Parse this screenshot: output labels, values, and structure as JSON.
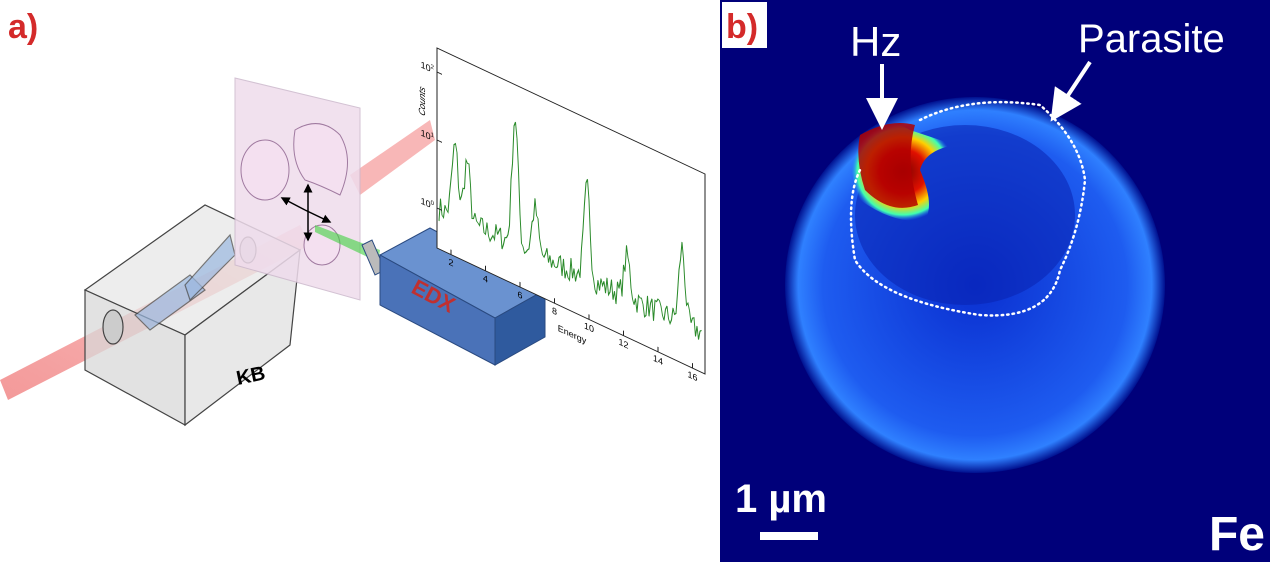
{
  "panel_a": {
    "label": "a)",
    "kb_label": "KB",
    "edx_label": "EDX",
    "spectrum": {
      "y_label": "Counts",
      "x_label": "Energy",
      "x_ticks": [
        "2",
        "4",
        "6",
        "8",
        "10",
        "12",
        "14",
        "16"
      ],
      "y_ticks": [
        {
          "base": "10",
          "exp": "0"
        },
        {
          "base": "10",
          "exp": "1"
        },
        {
          "base": "10",
          "exp": "2"
        }
      ]
    }
  },
  "panel_b": {
    "label": "b)",
    "hz_label": "Hz",
    "parasite_label": "Parasite",
    "scale_bar": "1 µm",
    "element": "Fe"
  }
}
